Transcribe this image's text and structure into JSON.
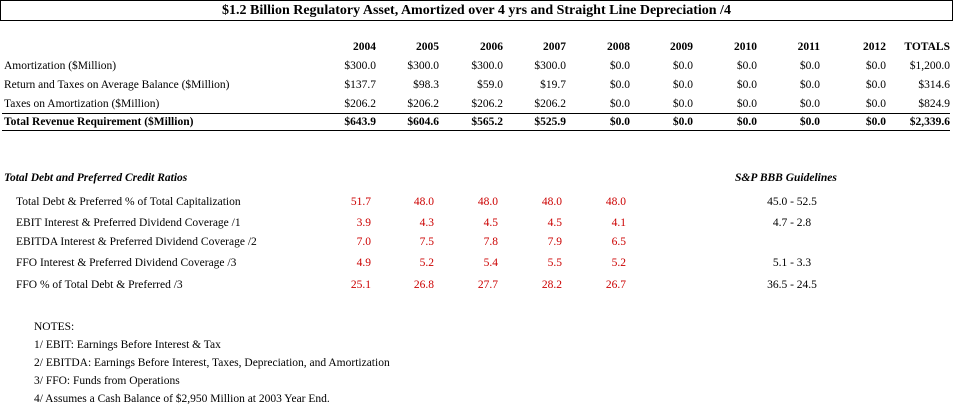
{
  "title": "$1.2 Billion Regulatory Asset, Amortized over 4 yrs and Straight Line Depreciation /4",
  "years": [
    "2004",
    "2005",
    "2006",
    "2007",
    "2008",
    "2009",
    "2010",
    "2011",
    "2012",
    "TOTALS"
  ],
  "revenue_rows": [
    {
      "label": "Amortization ($Million)",
      "values": [
        "$300.0",
        "$300.0",
        "$300.0",
        "$300.0",
        "$0.0",
        "$0.0",
        "$0.0",
        "$0.0",
        "$0.0",
        "$1,200.0"
      ]
    },
    {
      "label": "Return and Taxes on Average Balance ($Million)",
      "values": [
        "$137.7",
        "$98.3",
        "$59.0",
        "$19.7",
        "$0.0",
        "$0.0",
        "$0.0",
        "$0.0",
        "$0.0",
        "$314.6"
      ]
    },
    {
      "label": "Taxes on Amortization ($Million)",
      "values": [
        "$206.2",
        "$206.2",
        "$206.2",
        "$206.2",
        "$0.0",
        "$0.0",
        "$0.0",
        "$0.0",
        "$0.0",
        "$824.9"
      ]
    }
  ],
  "total_row": {
    "label": "Total Revenue Requirement ($Million)",
    "values": [
      "$643.9",
      "$604.6",
      "$565.2",
      "$525.9",
      "$0.0",
      "$0.0",
      "$0.0",
      "$0.0",
      "$0.0",
      "$2,339.6"
    ]
  },
  "ratios_heading": "Total Debt and Preferred Credit Ratios",
  "guidelines_heading": "S&P BBB Guidelines",
  "ratio_rows": [
    {
      "label": "Total Debt & Preferred % of Total Capitalization",
      "values": [
        "51.7",
        "48.0",
        "48.0",
        "48.0",
        "48.0"
      ],
      "guideline": "45.0 - 52.5"
    },
    {
      "label": "EBIT Interest & Preferred Dividend Coverage /1",
      "values": [
        "3.9",
        "4.3",
        "4.5",
        "4.5",
        "4.1"
      ],
      "guideline": "4.7 - 2.8"
    },
    {
      "label": "EBITDA Interest & Preferred Dividend Coverage /2",
      "values": [
        "7.0",
        "7.5",
        "7.8",
        "7.9",
        "6.5"
      ],
      "guideline": ""
    },
    {
      "label": "FFO Interest & Preferred Dividend Coverage /3",
      "values": [
        "4.9",
        "5.2",
        "5.4",
        "5.5",
        "5.2"
      ],
      "guideline": "5.1 - 3.3"
    },
    {
      "label": "FFO % of Total Debt & Preferred /3",
      "values": [
        "25.1",
        "26.8",
        "27.7",
        "28.2",
        "26.7"
      ],
      "guideline": "36.5 - 24.5"
    }
  ],
  "notes": [
    "NOTES:",
    "1/ EBIT: Earnings Before Interest & Tax",
    "2/ EBITDA: Earnings Before Interest, Taxes, Depreciation, and Amortization",
    "3/ FFO: Funds from Operations",
    "4/ Assumes a Cash Balance of $2,950 Million at 2003 Year End."
  ],
  "colors": {
    "ratio_values": "#cc0000"
  }
}
